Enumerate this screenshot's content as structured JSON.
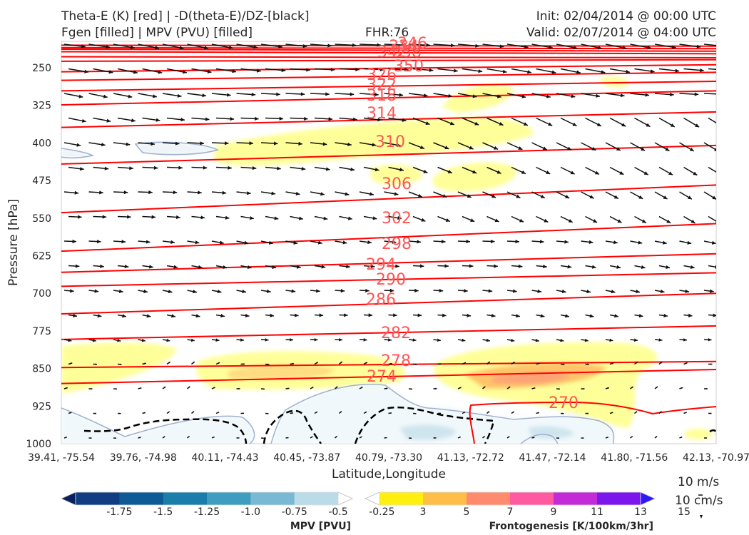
{
  "header": {
    "title_left_1": "Theta-E (K) [red] | -D(theta-E)/DZ-[black]",
    "title_left_2": "Fgen [filled] | MPV (PVU) [filled]",
    "title_center": "FHR:76",
    "title_right_1": "Init: 02/04/2014 @ 00:00 UTC",
    "title_right_2": "Valid: 02/07/2014 @ 04:00 UTC"
  },
  "chart_data": {
    "type": "cross-section",
    "xlabel": "Latitude,Longitude",
    "ylabel": "Pressure [hPa]",
    "ylim": [
      1000,
      200
    ],
    "yscale": "linear (pressure, inverted)",
    "y_ticks": [
      "250",
      "325",
      "400",
      "475",
      "550",
      "625",
      "700",
      "775",
      "850",
      "925",
      "1000"
    ],
    "y_tick_values": [
      250,
      325,
      400,
      475,
      550,
      625,
      700,
      775,
      850,
      925,
      1000
    ],
    "x_ticks": [
      "39.41, -75.54",
      "39.76, -74.98",
      "40.11, -74.43",
      "40.45, -73.87",
      "40.79, -73.30",
      "41.13, -72.72",
      "41.47, -72.14",
      "41.80, -71.56",
      "42.13, -70.97"
    ],
    "theta_e_contours": {
      "color": "#ff0000",
      "labels": [
        "342",
        "346",
        "338",
        "334",
        "350",
        "326",
        "322",
        "318",
        "314",
        "310",
        "306",
        "302",
        "298",
        "294",
        "290",
        "286",
        "282",
        "278",
        "274",
        "270"
      ],
      "lines": [
        {
          "level": 350,
          "left_p": 205,
          "right_p": 207
        },
        {
          "level": 346,
          "left_p": 210,
          "right_p": 212
        },
        {
          "level": 342,
          "left_p": 213,
          "right_p": 217
        },
        {
          "level": 338,
          "left_p": 218,
          "right_p": 222
        },
        {
          "level": 334,
          "left_p": 228,
          "right_p": 230
        },
        {
          "level": 330,
          "left_p": 237,
          "right_p": 234
        },
        {
          "level": 326,
          "left_p": 258,
          "right_p": 244
        },
        {
          "level": 322,
          "left_p": 275,
          "right_p": 259
        },
        {
          "level": 318,
          "left_p": 296,
          "right_p": 277
        },
        {
          "level": 314,
          "left_p": 324,
          "right_p": 296
        },
        {
          "level": 310,
          "left_p": 369,
          "right_p": 338
        },
        {
          "level": 306,
          "left_p": 442,
          "right_p": 405
        },
        {
          "level": 302,
          "left_p": 539,
          "right_p": 484
        },
        {
          "level": 298,
          "left_p": 616,
          "right_p": 561
        },
        {
          "level": 294,
          "left_p": 658,
          "right_p": 621
        },
        {
          "level": 290,
          "left_p": 686,
          "right_p": 659
        },
        {
          "level": 286,
          "left_p": 741,
          "right_p": 700
        },
        {
          "level": 282,
          "left_p": 792,
          "right_p": 765
        },
        {
          "level": 278,
          "left_p": 848,
          "right_p": 836
        },
        {
          "level": 274,
          "left_p": 880,
          "right_p": 852
        }
      ]
    },
    "legend_wind": {
      "line1": "10 m/s",
      "line2": "10 cm/s"
    },
    "colorbars": [
      {
        "title": "MPV [PVU]",
        "ticks": [
          "-1.75",
          "-1.5",
          "-1.25",
          "-1.0",
          "-0.75",
          "-0.5",
          "-0.25"
        ],
        "colors": [
          "#0a1f5e",
          "#113d82",
          "#0d5a96",
          "#1b7eaa",
          "#3f9ec0",
          "#7ab9d3",
          "#bcdbe8",
          "#ffffff"
        ]
      },
      {
        "title": "Frontogenesis [K/100km/3hr]",
        "ticks": [
          "3",
          "5",
          "7",
          "9",
          "11",
          "13",
          "15"
        ],
        "colors": [
          "#ffffff",
          "#ffef0e",
          "#ffbf47",
          "#ff8a6e",
          "#ff5aa0",
          "#c32ad8",
          "#7b17ec",
          "#2b1af5"
        ]
      }
    ]
  }
}
